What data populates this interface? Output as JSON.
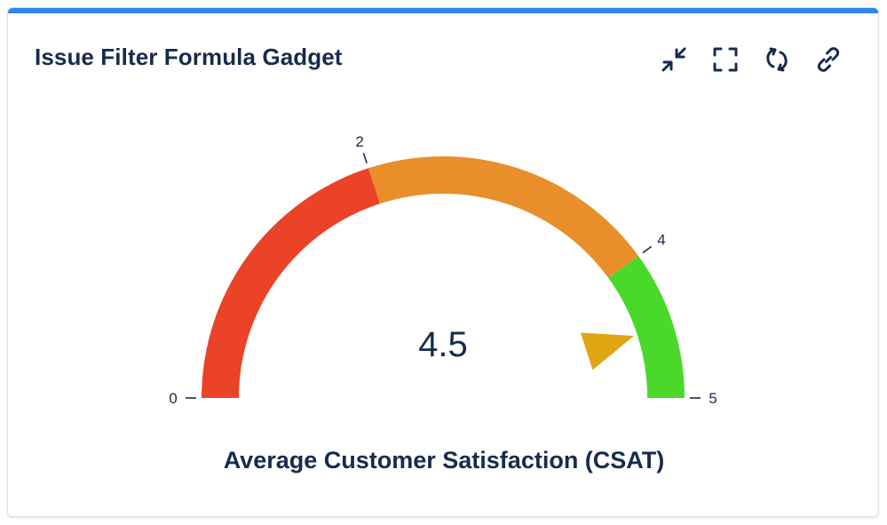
{
  "gadget": {
    "title": "Issue Filter Formula Gadget",
    "accent_color": "#2f86eb"
  },
  "toolbar": {
    "buttons": [
      {
        "name": "minimize-icon",
        "label": "Minimize"
      },
      {
        "name": "fullscreen-icon",
        "label": "Full screen"
      },
      {
        "name": "refresh-icon",
        "label": "Refresh"
      },
      {
        "name": "link-icon",
        "label": "Copy link"
      }
    ]
  },
  "chart_data": {
    "type": "gauge",
    "value": 4.5,
    "value_label": "4.5",
    "min": 0,
    "max": 5,
    "label": "Average Customer Satisfaction (CSAT)",
    "ticks": [
      0,
      2,
      4,
      5
    ],
    "bands": [
      {
        "from": 0,
        "to": 2,
        "color": "#ea4327"
      },
      {
        "from": 2,
        "to": 4,
        "color": "#e88f2b"
      },
      {
        "from": 4,
        "to": 5,
        "color": "#4ad82a"
      }
    ],
    "pointer_color": "#dfa512"
  }
}
